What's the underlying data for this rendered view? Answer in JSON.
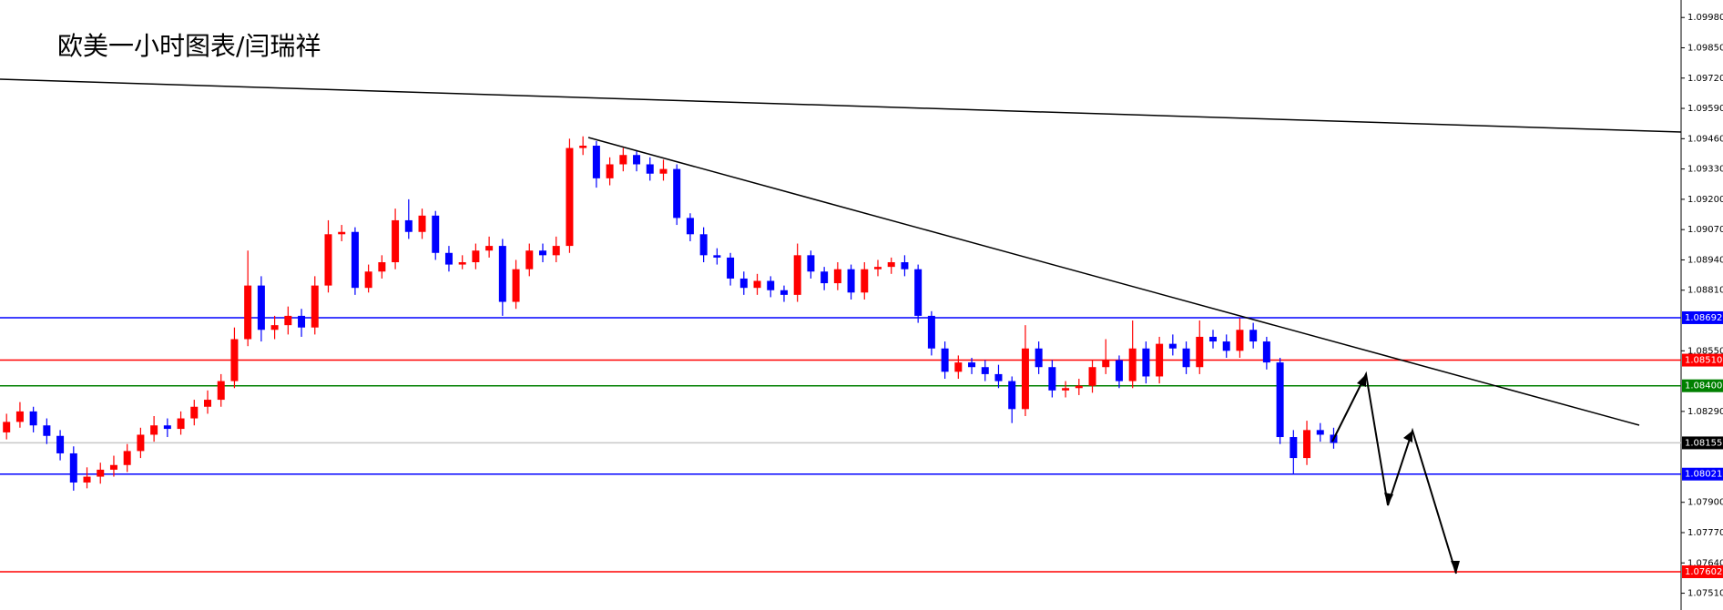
{
  "chart_data": {
    "type": "candlestick",
    "title": "欧美一小时图表/闫瑞祥",
    "ylim": [
      1.07438,
      1.10055
    ],
    "yticks": [
      {
        "value": 1.0998,
        "label": "1.09980"
      },
      {
        "value": 1.0985,
        "label": "1.09850"
      },
      {
        "value": 1.0972,
        "label": "1.09720"
      },
      {
        "value": 1.0959,
        "label": "1.09590"
      },
      {
        "value": 1.0946,
        "label": "1.09460"
      },
      {
        "value": 1.0933,
        "label": "1.09330"
      },
      {
        "value": 1.092,
        "label": "1.09200"
      },
      {
        "value": 1.0907,
        "label": "1.09070"
      },
      {
        "value": 1.0894,
        "label": "1.08940"
      },
      {
        "value": 1.0881,
        "label": "1.08810"
      },
      {
        "value": 1.0855,
        "label": "1.08550"
      },
      {
        "value": 1.0829,
        "label": "1.08290"
      },
      {
        "value": 1.079,
        "label": "1.07900"
      },
      {
        "value": 1.0777,
        "label": "1.07770"
      },
      {
        "value": 1.0764,
        "label": "1.07640"
      },
      {
        "value": 1.0751,
        "label": "1.07510"
      }
    ],
    "up_color": "#ff0000",
    "down_color": "#0000ff",
    "open": [
      1.082,
      1.08245,
      1.0829,
      1.0823,
      1.08185,
      1.0811,
      1.07985,
      1.0801,
      1.0804,
      1.0806,
      1.0812,
      1.0819,
      1.0823,
      1.08215,
      1.0826,
      1.0831,
      1.0834,
      1.0842,
      1.086,
      1.0883,
      1.0864,
      1.0866,
      1.087,
      1.0865,
      1.0883,
      1.0905,
      1.0906,
      1.0882,
      1.0889,
      1.0893,
      1.0911,
      1.0906,
      1.0913,
      1.0897,
      1.0892,
      1.0893,
      1.0898,
      1.09,
      1.0876,
      1.089,
      1.0898,
      1.0896,
      1.09,
      1.0942,
      1.0943,
      1.0929,
      1.0935,
      1.0939,
      1.0935,
      1.0931,
      1.0933,
      1.0912,
      1.0905,
      1.0896,
      1.0895,
      1.0886,
      1.0882,
      1.0885,
      1.0881,
      1.0879,
      1.0896,
      1.0889,
      1.0884,
      1.089,
      1.088,
      1.089,
      1.0891,
      1.0893,
      1.089,
      1.087,
      1.0856,
      1.0846,
      1.085,
      1.0848,
      1.0845,
      1.0842,
      1.083,
      1.0856,
      1.0848,
      1.0838,
      1.0839,
      1.084,
      1.0848,
      1.0851,
      1.0842,
      1.0856,
      1.0844,
      1.0858,
      1.0856,
      1.0848,
      1.0861,
      1.0859,
      1.0855,
      1.0864,
      1.0859,
      1.085,
      1.0818,
      1.0809,
      1.0821,
      1.0819
    ],
    "high": [
      1.0828,
      1.0833,
      1.0831,
      1.0826,
      1.0821,
      1.0814,
      1.0805,
      1.0807,
      1.081,
      1.0815,
      1.0822,
      1.0827,
      1.0826,
      1.0829,
      1.0834,
      1.0838,
      1.0845,
      1.0865,
      1.0898,
      1.0887,
      1.087,
      1.0874,
      1.0873,
      1.0887,
      1.0911,
      1.0909,
      1.0908,
      1.0892,
      1.0896,
      1.0916,
      1.092,
      1.0916,
      1.0915,
      1.09,
      1.0896,
      1.0901,
      1.0904,
      1.0903,
      1.0894,
      1.0901,
      1.0901,
      1.0904,
      1.0946,
      1.0947,
      1.0945,
      1.0938,
      1.0942,
      1.0941,
      1.0938,
      1.0937,
      1.0935,
      1.0914,
      1.0908,
      1.0899,
      1.0897,
      1.0889,
      1.0888,
      1.0887,
      1.0883,
      1.0901,
      1.0898,
      1.0891,
      1.0893,
      1.0892,
      1.0893,
      1.0894,
      1.0895,
      1.0896,
      1.0892,
      1.0872,
      1.0859,
      1.0853,
      1.0852,
      1.0851,
      1.0849,
      1.0844,
      1.0866,
      1.0859,
      1.0851,
      1.0842,
      1.0843,
      1.0851,
      1.086,
      1.0853,
      1.0868,
      1.0859,
      1.0861,
      1.0862,
      1.0859,
      1.0868,
      1.0864,
      1.0862,
      1.0869,
      1.0867,
      1.0861,
      1.0852,
      1.0821,
      1.0825,
      1.0824,
      1.0822
    ],
    "low": [
      1.0817,
      1.0822,
      1.082,
      1.0815,
      1.0808,
      1.0795,
      1.0796,
      1.0798,
      1.0801,
      1.0803,
      1.0809,
      1.0816,
      1.0818,
      1.0819,
      1.0823,
      1.0828,
      1.0831,
      1.0839,
      1.0857,
      1.0859,
      1.086,
      1.0862,
      1.0861,
      1.0862,
      1.088,
      1.0902,
      1.0879,
      1.088,
      1.0886,
      1.089,
      1.0903,
      1.0903,
      1.0894,
      1.0889,
      1.089,
      1.089,
      1.0895,
      1.087,
      1.0873,
      1.0887,
      1.0893,
      1.0893,
      1.0897,
      1.0939,
      1.0925,
      1.0926,
      1.0932,
      1.0932,
      1.0928,
      1.0928,
      1.0909,
      1.0902,
      1.0893,
      1.0892,
      1.0883,
      1.0879,
      1.0879,
      1.0878,
      1.0876,
      1.0876,
      1.0886,
      1.0881,
      1.0881,
      1.0877,
      1.0877,
      1.0887,
      1.0888,
      1.0887,
      1.0867,
      1.0853,
      1.0843,
      1.0843,
      1.0845,
      1.0842,
      1.0839,
      1.0824,
      1.0827,
      1.0845,
      1.0835,
      1.0835,
      1.0836,
      1.0837,
      1.0845,
      1.0839,
      1.0839,
      1.0841,
      1.0841,
      1.0853,
      1.0845,
      1.0845,
      1.0856,
      1.0852,
      1.0852,
      1.0856,
      1.0847,
      1.0815,
      1.0802,
      1.0806,
      1.0816,
      1.0813
    ],
    "close": [
      1.08245,
      1.0829,
      1.0823,
      1.08185,
      1.0811,
      1.07985,
      1.0801,
      1.0804,
      1.0806,
      1.0812,
      1.0819,
      1.0823,
      1.08215,
      1.0826,
      1.0831,
      1.0834,
      1.0842,
      1.086,
      1.0883,
      1.0864,
      1.0866,
      1.087,
      1.0865,
      1.0883,
      1.0905,
      1.0906,
      1.0882,
      1.0889,
      1.0893,
      1.0911,
      1.0906,
      1.0913,
      1.0897,
      1.0892,
      1.0893,
      1.0898,
      1.09,
      1.0876,
      1.089,
      1.0898,
      1.0896,
      1.09,
      1.0942,
      1.0943,
      1.0929,
      1.0935,
      1.0939,
      1.0935,
      1.0931,
      1.0933,
      1.0912,
      1.0905,
      1.0896,
      1.0895,
      1.0886,
      1.0882,
      1.0885,
      1.0881,
      1.0879,
      1.0896,
      1.0889,
      1.0884,
      1.089,
      1.088,
      1.089,
      1.0891,
      1.0893,
      1.089,
      1.087,
      1.0856,
      1.0846,
      1.085,
      1.0848,
      1.0845,
      1.0842,
      1.083,
      1.0856,
      1.0848,
      1.0838,
      1.0839,
      1.084,
      1.0848,
      1.0851,
      1.0842,
      1.0856,
      1.0844,
      1.0858,
      1.0856,
      1.0848,
      1.0861,
      1.0859,
      1.0855,
      1.0864,
      1.0859,
      1.085,
      1.0818,
      1.0809,
      1.0821,
      1.0819,
      1.08155
    ],
    "levels": [
      {
        "value": 1.08692,
        "label": "1.08692",
        "color": "#0000ff"
      },
      {
        "value": 1.0851,
        "label": "1.08510",
        "color": "#ff0000"
      },
      {
        "value": 1.084,
        "label": "1.08400",
        "color": "#008000"
      },
      {
        "value": 1.08155,
        "label": "1.08155",
        "color": "#c8c8c8",
        "box_color": "#000000"
      },
      {
        "value": 1.08021,
        "label": "1.08021",
        "color": "#0000ff"
      },
      {
        "value": 1.07602,
        "label": "1.07602",
        "color": "#ff0000"
      }
    ]
  }
}
